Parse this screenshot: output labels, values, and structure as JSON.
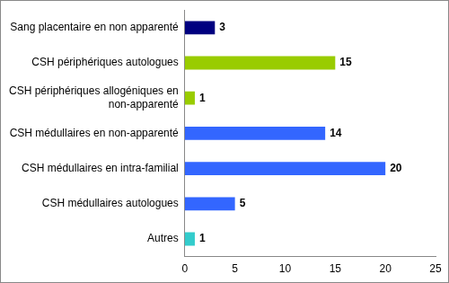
{
  "chart_data": {
    "type": "bar",
    "orientation": "horizontal",
    "categories": [
      "Sang placentaire en non apparenté",
      "CSH périphériques autologues",
      "CSH périphériques allogéniques en non-apparenté",
      "CSH médullaires en non-apparenté",
      "CSH médullaires en intra-familial",
      "CSH médullaires autologues",
      "Autres"
    ],
    "values": [
      3,
      15,
      1,
      14,
      20,
      5,
      1
    ],
    "colors": [
      "#000080",
      "#99CC00",
      "#99CC00",
      "#3366FF",
      "#3366FF",
      "#3366FF",
      "#33CCCC"
    ],
    "xlim": [
      0,
      25
    ],
    "xticks": [
      0,
      5,
      10,
      15,
      20,
      25
    ],
    "grid": false,
    "data_labels": true
  }
}
